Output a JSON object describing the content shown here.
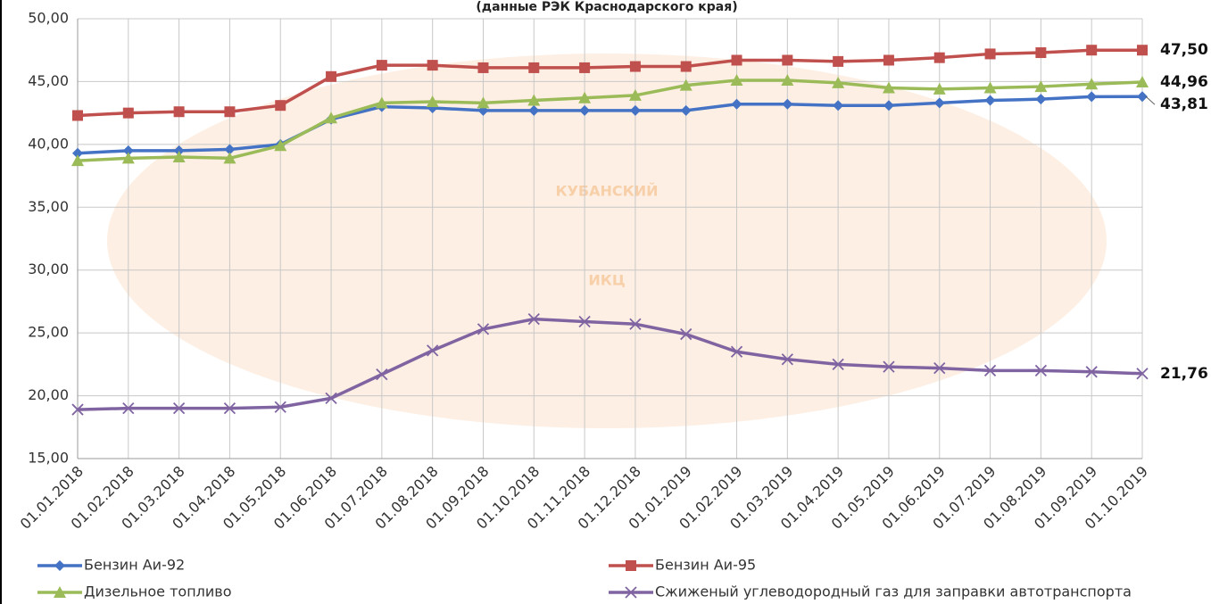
{
  "chart_data": {
    "type": "line",
    "title": "(данные РЭК Краснодарского края)",
    "watermark": [
      "КУБАНСКИЙ",
      "ИКЦ"
    ],
    "categories": [
      "01.01.2018",
      "01.02.2018",
      "01.03.2018",
      "01.04.2018",
      "01.05.2018",
      "01.06.2018",
      "01.07.2018",
      "01.08.2018",
      "01.09.2018",
      "01.10.2018",
      "01.11.2018",
      "01.12.2018",
      "01.01.2019",
      "01.02.2019",
      "01.03.2019",
      "01.04.2019",
      "01.05.2019",
      "01.06.2019",
      "01.07.2019",
      "01.08.2019",
      "01.09.2019",
      "01.10.2019"
    ],
    "ylim": [
      15,
      50
    ],
    "yticks": [
      {
        "value": 15,
        "label": "15,00"
      },
      {
        "value": 20,
        "label": "20,00"
      },
      {
        "value": 25,
        "label": "25,00"
      },
      {
        "value": 30,
        "label": "30,00"
      },
      {
        "value": 35,
        "label": "35,00"
      },
      {
        "value": 40,
        "label": "40,00"
      },
      {
        "value": 45,
        "label": "45,00"
      },
      {
        "value": 50,
        "label": "50,00"
      }
    ],
    "grid": true,
    "legend": "bottom",
    "series": [
      {
        "name": "Бензин Аи-92",
        "color": "#4472c4",
        "marker": "diamond",
        "values": [
          39.3,
          39.5,
          39.5,
          39.6,
          40.0,
          42.0,
          43.0,
          42.9,
          42.7,
          42.7,
          42.7,
          42.7,
          42.7,
          43.2,
          43.2,
          43.1,
          43.1,
          43.3,
          43.5,
          43.6,
          43.8,
          43.81
        ],
        "value_labels": [
          null,
          null,
          null,
          null,
          null,
          null,
          null,
          null,
          null,
          null,
          null,
          null,
          null,
          null,
          null,
          null,
          null,
          null,
          null,
          null,
          null,
          "43,81"
        ]
      },
      {
        "name": "Бензин Аи-95",
        "color": "#c0504d",
        "marker": "square",
        "values": [
          42.3,
          42.5,
          42.6,
          42.6,
          43.1,
          45.4,
          46.3,
          46.3,
          46.1,
          46.1,
          46.1,
          46.2,
          46.2,
          46.7,
          46.7,
          46.6,
          46.7,
          46.9,
          47.2,
          47.3,
          47.5,
          47.5
        ],
        "value_labels": [
          null,
          null,
          null,
          null,
          null,
          null,
          null,
          null,
          null,
          null,
          null,
          null,
          null,
          null,
          null,
          null,
          null,
          null,
          null,
          null,
          null,
          "47,50"
        ]
      },
      {
        "name": "Дизельное топливо",
        "color": "#9bbb59",
        "marker": "triangle",
        "values": [
          38.7,
          38.9,
          39.0,
          38.9,
          39.9,
          42.1,
          43.3,
          43.4,
          43.3,
          43.5,
          43.7,
          43.9,
          44.7,
          45.1,
          45.1,
          44.9,
          44.5,
          44.4,
          44.5,
          44.6,
          44.8,
          44.96
        ],
        "value_labels": [
          null,
          null,
          null,
          null,
          null,
          null,
          null,
          null,
          null,
          null,
          null,
          null,
          null,
          null,
          null,
          null,
          null,
          null,
          null,
          null,
          null,
          "44,96"
        ]
      },
      {
        "name": "Сжиженый углеводородный газ для заправки автотранспорта",
        "color": "#8064a2",
        "marker": "x",
        "values": [
          18.9,
          19.0,
          19.0,
          19.0,
          19.1,
          19.8,
          21.7,
          23.6,
          25.3,
          26.1,
          25.9,
          25.7,
          24.9,
          23.5,
          22.9,
          22.5,
          22.3,
          22.2,
          22.0,
          22.0,
          21.9,
          21.76
        ],
        "value_labels": [
          null,
          null,
          null,
          null,
          null,
          null,
          null,
          null,
          null,
          null,
          null,
          null,
          null,
          null,
          null,
          null,
          null,
          null,
          null,
          null,
          null,
          "21,76"
        ]
      }
    ]
  }
}
